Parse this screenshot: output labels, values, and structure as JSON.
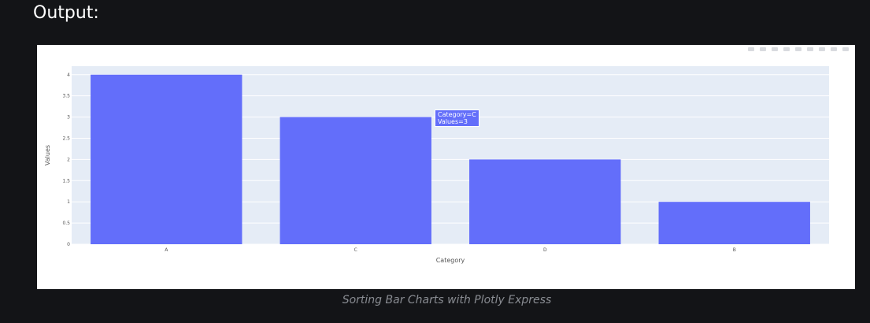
{
  "heading": "Output:",
  "caption": "Sorting Bar Charts with Plotly Express",
  "modebar_icons": [
    "camera-icon",
    "zoom-icon",
    "pan-icon",
    "box-select-icon",
    "lasso-icon",
    "zoom-in-icon",
    "zoom-out-icon",
    "autoscale-icon",
    "reset-axes-icon"
  ],
  "tooltip": {
    "category_line": "Category=C",
    "values_line": "Values=3"
  },
  "chart_data": {
    "type": "bar",
    "categories": [
      "A",
      "C",
      "D",
      "B"
    ],
    "values": [
      4,
      3,
      2,
      1
    ],
    "xlabel": "Category",
    "ylabel": "Values",
    "ylim": [
      0,
      4.2
    ],
    "yticks": [
      "0",
      "0.5",
      "1",
      "1.5",
      "2",
      "2.5",
      "3",
      "3.5",
      "4"
    ],
    "grid": true,
    "bar_color": "#636efa",
    "plot_bg": "#e5ecf6"
  }
}
